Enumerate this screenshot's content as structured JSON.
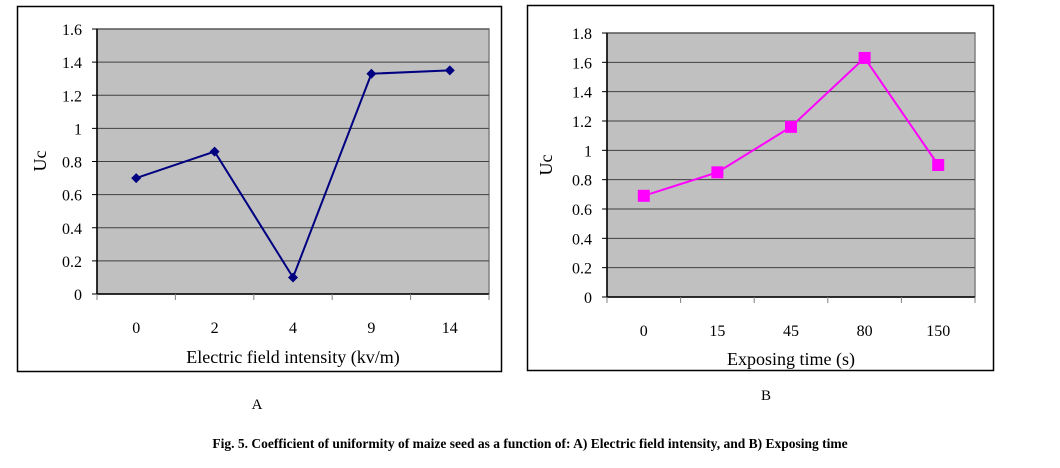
{
  "figure": {
    "caption": "Fig. 5. Coefficient of uniformity of maize seed as a function of: A) Electric field intensity, and B) Exposing time",
    "panel_labels": [
      "A",
      "B"
    ]
  },
  "chart_data": [
    {
      "type": "line",
      "panel": "A",
      "title": "",
      "xlabel": "Electric field intensity (kv/m)",
      "ylabel": "Uc",
      "categories": [
        "0",
        "2",
        "4",
        "9",
        "14"
      ],
      "series": [
        {
          "name": "Uc",
          "values": [
            0.7,
            0.86,
            0.1,
            1.33,
            1.35
          ],
          "color": "#000080",
          "marker": "diamond"
        }
      ],
      "ylim": [
        0,
        1.6
      ],
      "yticks": [
        "0",
        "0.2",
        "0.4",
        "0.6",
        "0.8",
        "1",
        "1.2",
        "1.4",
        "1.6"
      ],
      "ytick_values": [
        0,
        0.2,
        0.4,
        0.6,
        0.8,
        1.0,
        1.2,
        1.4,
        1.6
      ],
      "grid": true,
      "plot_background": "#c0c0c0",
      "legend": "none"
    },
    {
      "type": "line",
      "panel": "B",
      "title": "",
      "xlabel": "Exposing time (s)",
      "ylabel": "Uc",
      "categories": [
        "0",
        "15",
        "45",
        "80",
        "150"
      ],
      "series": [
        {
          "name": "Uc",
          "values": [
            0.69,
            0.85,
            1.16,
            1.63,
            0.9
          ],
          "color": "#ff00ff",
          "marker": "square"
        }
      ],
      "ylim": [
        0,
        1.8
      ],
      "yticks": [
        "0",
        "0.2",
        "0.4",
        "0.6",
        "0.8",
        "1",
        "1.2",
        "1.4",
        "1.6",
        "1.8"
      ],
      "ytick_values": [
        0,
        0.2,
        0.4,
        0.6,
        0.8,
        1.0,
        1.2,
        1.4,
        1.6,
        1.8
      ],
      "grid": true,
      "plot_background": "#c0c0c0",
      "legend": "none"
    }
  ]
}
